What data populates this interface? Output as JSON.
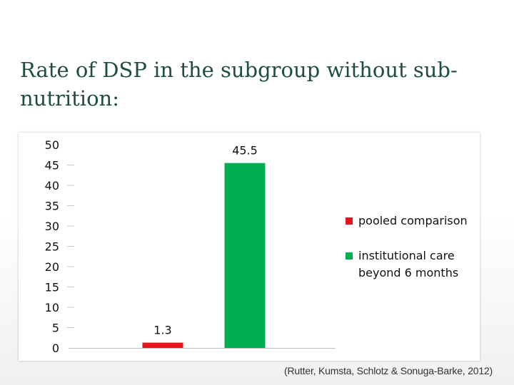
{
  "slide": {
    "title": "Rate of DSP in the subgroup without sub-nutrition:",
    "citation": "(Rutter, Kumsta, Schlotz & Sonuga-Barke, 2012)"
  },
  "chart_data": {
    "type": "bar",
    "categories": [
      "pooled comparison",
      "institutional care beyond 6 months"
    ],
    "values": [
      1.3,
      45.5
    ],
    "data_labels": [
      "1.3",
      "45.5"
    ],
    "colors": [
      "#e8141c",
      "#00b050"
    ],
    "yticks": [
      "0",
      "5",
      "10",
      "15",
      "20",
      "25",
      "30",
      "35",
      "40",
      "45",
      "50"
    ],
    "ylim": [
      0,
      50
    ],
    "legend": {
      "placement": "right",
      "entries": [
        {
          "lines": [
            "pooled comparison"
          ],
          "color": "#e8141c"
        },
        {
          "lines": [
            "institutional care",
            "beyond 6 months"
          ],
          "color": "#00b050"
        }
      ]
    },
    "grid": false
  }
}
